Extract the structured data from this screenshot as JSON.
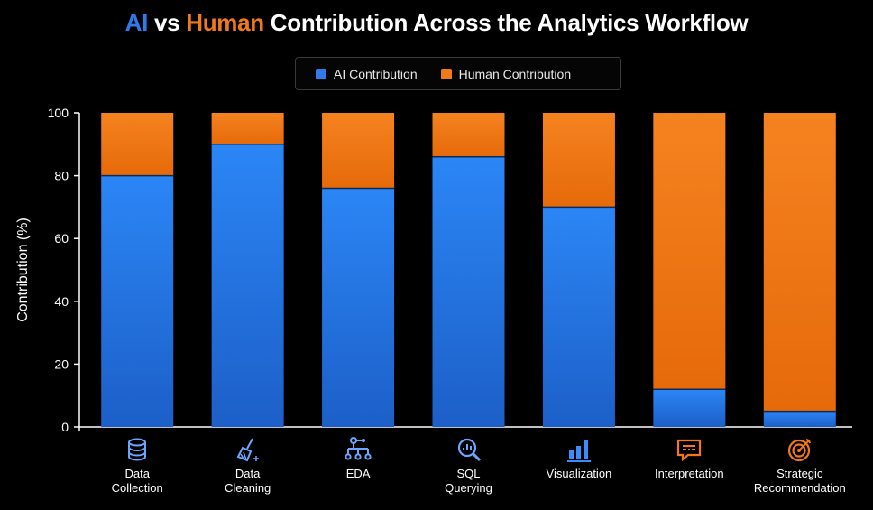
{
  "title": {
    "part1": "AI",
    "part2": " vs ",
    "part3": "Human",
    "part4": " Contribution Across the Analytics Workflow"
  },
  "legend": [
    {
      "label": "AI Contribution",
      "color": "#2f7bea"
    },
    {
      "label": "Human Contribution",
      "color": "#f07a1a"
    }
  ],
  "chart_data": {
    "type": "bar",
    "stacked": true,
    "categories": [
      "Data Collection",
      "Data Cleaning",
      "EDA",
      "SQL Querying",
      "Visualization",
      "Interpretation",
      "Strategic Recommendation"
    ],
    "series": [
      {
        "name": "AI Contribution",
        "color": "#2f7bea",
        "values": [
          80,
          90,
          76,
          86,
          70,
          12,
          5
        ]
      },
      {
        "name": "Human Contribution",
        "color": "#f07a1a",
        "values": [
          20,
          10,
          24,
          14,
          30,
          88,
          95
        ]
      }
    ],
    "ylabel": "Contribution (%)",
    "ylim": [
      0,
      100
    ],
    "yticks": [
      0,
      20,
      40,
      60,
      80,
      100
    ],
    "grid": false,
    "legend_position": "top-center"
  },
  "category_labels": [
    {
      "line1": "Data",
      "line2": "Collection",
      "icon": "database-icon"
    },
    {
      "line1": "Data",
      "line2": "Cleaning",
      "icon": "broom-icon"
    },
    {
      "line1": "EDA",
      "line2": "",
      "icon": "hierarchy-icon"
    },
    {
      "line1": "SQL",
      "line2": "Querying",
      "icon": "magnifier-chart-icon"
    },
    {
      "line1": "Visualization",
      "line2": "",
      "icon": "bar-chart-icon"
    },
    {
      "line1": "Interpretation",
      "line2": "",
      "icon": "chat-bubble-icon"
    },
    {
      "line1": "Strategic",
      "line2": "Recommendation",
      "icon": "target-icon"
    }
  ]
}
